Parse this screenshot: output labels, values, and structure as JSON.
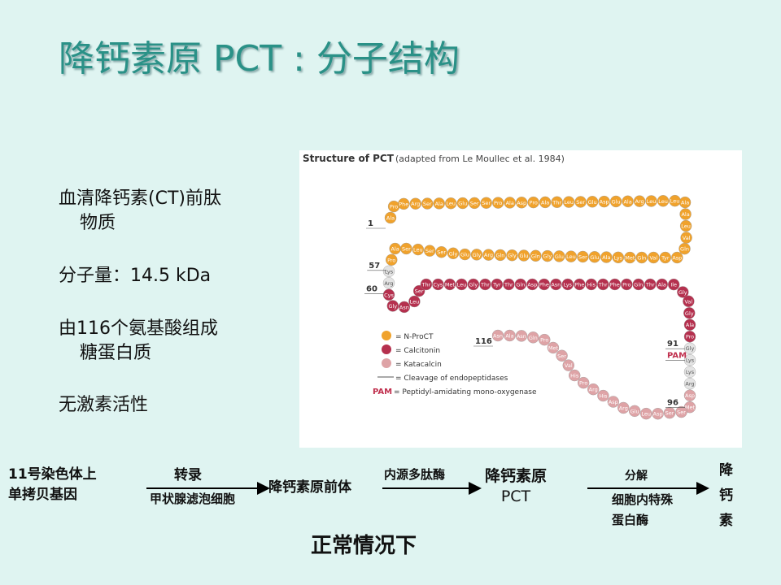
{
  "title": "降钙素原 PCT : 分子结构",
  "bullets": [
    [
      "血清降钙素(CT)前肽",
      "物质"
    ],
    [
      "分子量：14.5 kDa"
    ],
    [
      "由116个氨基酸组成",
      "糖蛋白质"
    ],
    [
      "无激素活性"
    ]
  ],
  "figure": {
    "title": "Structure of PCT",
    "source": "(adapted from Le Moullec et al. 1984)",
    "segments": [
      {
        "color": "#f0a22c",
        "residues": [
          "Ala",
          "Pro",
          "Phe",
          "Arg",
          "Ser",
          "Ala",
          "Leu",
          "Glu",
          "Ser",
          "Ser",
          "Pro",
          "Ala",
          "Asp",
          "Pro",
          "Ala",
          "Thr",
          "Leu",
          "Ser",
          "Glu",
          "Asp",
          "Glu",
          "Ala",
          "Arg",
          "Leu",
          "Leu",
          "Leu",
          "Ala",
          "Ala",
          "Leu",
          "Val",
          "Gln",
          "Asp",
          "Tyr",
          "Val",
          "Gln",
          "Met",
          "Lys",
          "Ala",
          "Glu",
          "Ser",
          "Leu",
          "Glu",
          "Gly",
          "Gln",
          "Glu",
          "Gly",
          "Gln",
          "Arg",
          "Gly",
          "Glu",
          "Gly",
          "Ser",
          "Ser",
          "Leu",
          "Ser",
          "Ala",
          "Pro"
        ]
      },
      {
        "color": "#e4e4e4",
        "residues": [
          "Lys",
          "Arg"
        ]
      },
      {
        "color": "#b5304e",
        "residues": [
          "Cys",
          "Gly",
          "Asn",
          "Leu",
          "Ser",
          "Thr",
          "Cys",
          "Met",
          "Leu",
          "Gly",
          "Thr",
          "Tyr",
          "Thr",
          "Gln",
          "Asp",
          "Phe",
          "Asn",
          "Lys",
          "Phe",
          "His",
          "Thr",
          "Phe",
          "Pro",
          "Gln",
          "Thr",
          "Ala",
          "Ile",
          "Gly",
          "Val",
          "Gly",
          "Ala",
          "Pro"
        ]
      },
      {
        "color": "#e4e4e4",
        "residues": [
          "Gly",
          "Lys",
          "Lys",
          "Arg"
        ]
      },
      {
        "color": "#dea3a6",
        "residues": [
          "Asp",
          "Met",
          "Ser",
          "Ser",
          "Asp",
          "Leu",
          "Glu",
          "Arg",
          "Asp",
          "His",
          "Arg",
          "Pro",
          "His",
          "Val",
          "Ser",
          "Met",
          "Pro",
          "Gln",
          "Asn",
          "Ala",
          "Asn"
        ]
      }
    ],
    "markers": [
      "1",
      "57",
      "60",
      "91",
      "PAM",
      "96",
      "116"
    ],
    "legend": [
      {
        "color": "#f0a22c",
        "label": "= N-ProCT"
      },
      {
        "color": "#b5304e",
        "label": "= Calcitonin"
      },
      {
        "color": "#dea3a6",
        "label": "= Katacalcin"
      },
      {
        "label": "= Cleavage of endopeptidases"
      },
      {
        "label": "PAM",
        "text": "= Peptidyl-amidating mono-oxygenase"
      }
    ]
  },
  "flow": {
    "gene": [
      "11号染色体上",
      "单拷贝基因"
    ],
    "step1_top": "转录",
    "step1_bottom": "甲状腺滤泡细胞",
    "precursor": "降钙素原前体",
    "step2_top": "内源多肽酶",
    "pct": [
      "降钙素原",
      "PCT"
    ],
    "step3_top": "分解",
    "step3_bottom": [
      "细胞内特殊",
      "蛋白酶"
    ],
    "product": "降钙素",
    "caption": "正常情况下"
  }
}
